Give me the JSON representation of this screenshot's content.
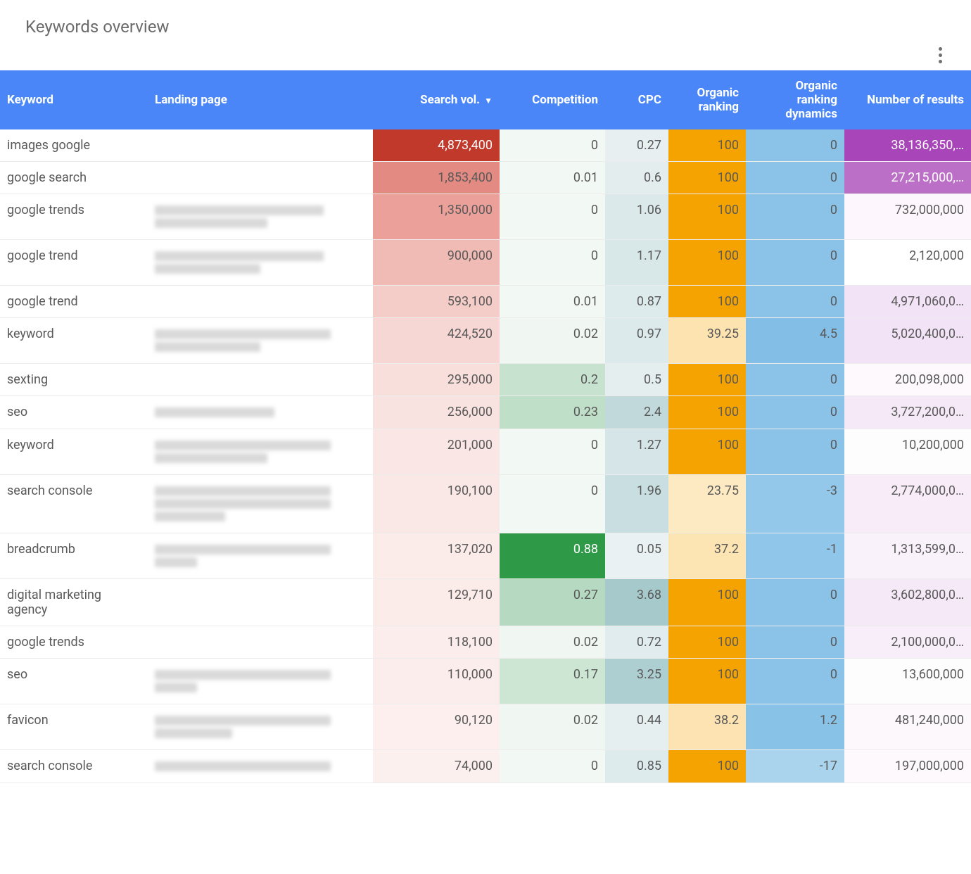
{
  "title": "Keywords overview",
  "columns": [
    {
      "key": "keyword",
      "label": "Keyword",
      "align": "left",
      "colClass": "c-keyword"
    },
    {
      "key": "landing",
      "label": "Landing page",
      "align": "left",
      "colClass": "c-landing"
    },
    {
      "key": "search_vol",
      "label": "Search vol.",
      "align": "right",
      "colClass": "c-vol",
      "sorted": "desc"
    },
    {
      "key": "competition",
      "label": "Competition",
      "align": "right",
      "colClass": "c-comp"
    },
    {
      "key": "cpc",
      "label": "CPC",
      "align": "right",
      "colClass": "c-cpc"
    },
    {
      "key": "organic_ranking",
      "label": "Organic ranking",
      "align": "right",
      "colClass": "c-rank"
    },
    {
      "key": "organic_dynamics",
      "label": "Organic ranking dynamics",
      "align": "right",
      "colClass": "c-dyn"
    },
    {
      "key": "num_results",
      "label": "Number of results",
      "align": "right",
      "colClass": "c-res"
    }
  ],
  "header_bg": "#4a86f7",
  "header_text_color": "#ffffff",
  "sort_indicator": "▼",
  "cell_bg_palettes": {
    "search_vol": {
      "base_hue": "red"
    },
    "competition": {
      "base_hue": "green"
    },
    "cpc": {
      "base_hue": "teal"
    },
    "organic_ranking": {
      "base_hue": "orange"
    },
    "organic_dynamics": {
      "base_hue": "blue"
    },
    "num_results": {
      "base_hue": "purple"
    }
  },
  "rows": [
    {
      "keyword": "images google",
      "landing_blurred": false,
      "landing_bars": [],
      "search_vol": "4,873,400",
      "search_vol_bg": "#c0392b",
      "search_vol_fg": "#ffffff",
      "competition": "0",
      "competition_bg": "#f2f8f4",
      "cpc": "0.27",
      "cpc_bg": "#e7eff0",
      "organic_ranking": "100",
      "organic_ranking_bg": "#f5a300",
      "organic_dynamics": "0",
      "organic_dynamics_bg": "#8bc3e8",
      "num_results": "38,136,350,…",
      "num_results_bg": "#a845b8",
      "num_results_fg": "#ffffff"
    },
    {
      "keyword": "google search",
      "landing_blurred": false,
      "landing_bars": [],
      "search_vol": "1,853,400",
      "search_vol_bg": "#e38a83",
      "competition": "0.01",
      "competition_bg": "#f2f8f4",
      "cpc": "0.6",
      "cpc_bg": "#e3edee",
      "organic_ranking": "100",
      "organic_ranking_bg": "#f5a300",
      "organic_dynamics": "0",
      "organic_dynamics_bg": "#8bc3e8",
      "num_results": "27,215,000,…",
      "num_results_bg": "#bb6fc6",
      "num_results_fg": "#ffffff"
    },
    {
      "keyword": "google trends",
      "landing_blurred": true,
      "landing_bars": [
        240,
        160
      ],
      "search_vol": "1,350,000",
      "search_vol_bg": "#eba09a",
      "competition": "0",
      "competition_bg": "#f2f8f4",
      "cpc": "1.06",
      "cpc_bg": "#dbe9ea",
      "organic_ranking": "100",
      "organic_ranking_bg": "#f5a300",
      "organic_dynamics": "0",
      "organic_dynamics_bg": "#8bc3e8",
      "num_results": "732,000,000",
      "num_results_bg": "#fdf7fd"
    },
    {
      "keyword": "google trend",
      "landing_blurred": true,
      "landing_bars": [
        240,
        150
      ],
      "search_vol": "900,000",
      "search_vol_bg": "#f0bab5",
      "competition": "0",
      "competition_bg": "#f2f8f4",
      "cpc": "1.17",
      "cpc_bg": "#d8e7e8",
      "organic_ranking": "100",
      "organic_ranking_bg": "#f5a300",
      "organic_dynamics": "0",
      "organic_dynamics_bg": "#8bc3e8",
      "num_results": "2,120,000",
      "num_results_bg": "#ffffff"
    },
    {
      "keyword": "google trend",
      "landing_blurred": false,
      "landing_bars": [],
      "search_vol": "593,100",
      "search_vol_bg": "#f4cdc9",
      "competition": "0.01",
      "competition_bg": "#f2f8f4",
      "cpc": "0.87",
      "cpc_bg": "#deebec",
      "organic_ranking": "100",
      "organic_ranking_bg": "#f5a300",
      "organic_dynamics": "0",
      "organic_dynamics_bg": "#8bc3e8",
      "num_results": "4,971,060,0…",
      "num_results_bg": "#f3e3f6"
    },
    {
      "keyword": "keyword",
      "landing_blurred": true,
      "landing_bars": [
        250,
        150
      ],
      "search_vol": "424,520",
      "search_vol_bg": "#f6d7d4",
      "competition": "0.02",
      "competition_bg": "#f0f7f2",
      "cpc": "0.97",
      "cpc_bg": "#dceaeb",
      "organic_ranking": "39.25",
      "organic_ranking_bg": "#fde3b0",
      "organic_dynamics": "4.5",
      "organic_dynamics_bg": "#83bee6",
      "num_results": "5,020,400,0…",
      "num_results_bg": "#f3e3f6"
    },
    {
      "keyword": "sexting",
      "landing_blurred": false,
      "landing_bars": [],
      "search_vol": "295,000",
      "search_vol_bg": "#f8dfdc",
      "competition": "0.2",
      "competition_bg": "#c7e3cf",
      "cpc": "0.5",
      "cpc_bg": "#e4eeef",
      "organic_ranking": "100",
      "organic_ranking_bg": "#f5a300",
      "organic_dynamics": "0",
      "organic_dynamics_bg": "#8bc3e8",
      "num_results": "200,098,000",
      "num_results_bg": "#fdf9fd"
    },
    {
      "keyword": "seo",
      "landing_blurred": true,
      "landing_bars": [
        170
      ],
      "search_vol": "256,000",
      "search_vol_bg": "#f9e3e0",
      "competition": "0.23",
      "competition_bg": "#c0dfc9",
      "cpc": "2.4",
      "cpc_bg": "#c1d9db",
      "organic_ranking": "100",
      "organic_ranking_bg": "#f5a300",
      "organic_dynamics": "0",
      "organic_dynamics_bg": "#8bc3e8",
      "num_results": "3,727,200,0…",
      "num_results_bg": "#f5e8f7"
    },
    {
      "keyword": "keyword",
      "landing_blurred": true,
      "landing_bars": [
        250,
        160
      ],
      "search_vol": "201,000",
      "search_vol_bg": "#fae7e5",
      "competition": "0",
      "competition_bg": "#f2f8f4",
      "cpc": "1.27",
      "cpc_bg": "#d6e5e7",
      "organic_ranking": "100",
      "organic_ranking_bg": "#f5a300",
      "organic_dynamics": "0",
      "organic_dynamics_bg": "#8bc3e8",
      "num_results": "10,200,000",
      "num_results_bg": "#fefdfe"
    },
    {
      "keyword": "search console",
      "landing_blurred": true,
      "landing_bars": [
        250,
        250,
        100
      ],
      "search_vol": "190,100",
      "search_vol_bg": "#fae8e6",
      "competition": "0",
      "competition_bg": "#f2f8f4",
      "cpc": "1.96",
      "cpc_bg": "#c8dee0",
      "organic_ranking": "23.75",
      "organic_ranking_bg": "#feeac2",
      "organic_dynamics": "-3",
      "organic_dynamics_bg": "#94c8ea",
      "num_results": "2,774,000,0…",
      "num_results_bg": "#f7ecf8"
    },
    {
      "keyword": "breadcrumb",
      "landing_blurred": true,
      "landing_bars": [
        250,
        60
      ],
      "search_vol": "137,020",
      "search_vol_bg": "#fbece9",
      "competition": "0.88",
      "competition_bg": "#2e9a47",
      "competition_fg": "#ffffff",
      "cpc": "0.05",
      "cpc_bg": "#eaf1f2",
      "organic_ranking": "37.2",
      "organic_ranking_bg": "#fde4b3",
      "organic_dynamics": "-1",
      "organic_dynamics_bg": "#90c6e9",
      "num_results": "1,313,599,0…",
      "num_results_bg": "#faf2fb"
    },
    {
      "keyword": "digital marketing agency",
      "landing_blurred": false,
      "landing_bars": [],
      "search_vol": "129,710",
      "search_vol_bg": "#fbecea",
      "competition": "0.27",
      "competition_bg": "#b6dac1",
      "cpc": "3.68",
      "cpc_bg": "#a6c9cc",
      "organic_ranking": "100",
      "organic_ranking_bg": "#f5a300",
      "organic_dynamics": "0",
      "organic_dynamics_bg": "#8bc3e8",
      "num_results": "3,602,800,0…",
      "num_results_bg": "#f5e9f7"
    },
    {
      "keyword": "google trends",
      "landing_blurred": false,
      "landing_bars": [],
      "search_vol": "118,100",
      "search_vol_bg": "#fbedeb",
      "competition": "0.02",
      "competition_bg": "#f0f7f2",
      "cpc": "0.72",
      "cpc_bg": "#e0eced",
      "organic_ranking": "100",
      "organic_ranking_bg": "#f5a300",
      "organic_dynamics": "0",
      "organic_dynamics_bg": "#8bc3e8",
      "num_results": "2,100,000,0…",
      "num_results_bg": "#f8eef9"
    },
    {
      "keyword": "seo",
      "landing_blurred": true,
      "landing_bars": [
        250,
        60
      ],
      "search_vol": "110,000",
      "search_vol_bg": "#fbedeb",
      "competition": "0.17",
      "competition_bg": "#cce6d3",
      "cpc": "3.25",
      "cpc_bg": "#aecfd1",
      "organic_ranking": "100",
      "organic_ranking_bg": "#f5a300",
      "organic_dynamics": "0",
      "organic_dynamics_bg": "#8bc3e8",
      "num_results": "13,600,000",
      "num_results_bg": "#fefdfe"
    },
    {
      "keyword": "favicon",
      "landing_blurred": true,
      "landing_bars": [
        250,
        110
      ],
      "search_vol": "90,120",
      "search_vol_bg": "#fcefed",
      "competition": "0.02",
      "competition_bg": "#f0f7f2",
      "cpc": "0.44",
      "cpc_bg": "#e5efef",
      "organic_ranking": "38.2",
      "organic_ranking_bg": "#fde3b2",
      "organic_dynamics": "1.2",
      "organic_dynamics_bg": "#89c2e7",
      "num_results": "481,240,000",
      "num_results_bg": "#fcf8fc"
    },
    {
      "keyword": "search console",
      "landing_blurred": true,
      "landing_bars": [
        250
      ],
      "search_vol": "74,000",
      "search_vol_bg": "#fcf0ee",
      "competition": "0",
      "competition_bg": "#f2f8f4",
      "cpc": "0.85",
      "cpc_bg": "#deebec",
      "organic_ranking": "100",
      "organic_ranking_bg": "#f5a300",
      "organic_dynamics": "-17",
      "organic_dynamics_bg": "#aad4ee",
      "num_results": "197,000,000",
      "num_results_bg": "#fdf9fd"
    }
  ]
}
